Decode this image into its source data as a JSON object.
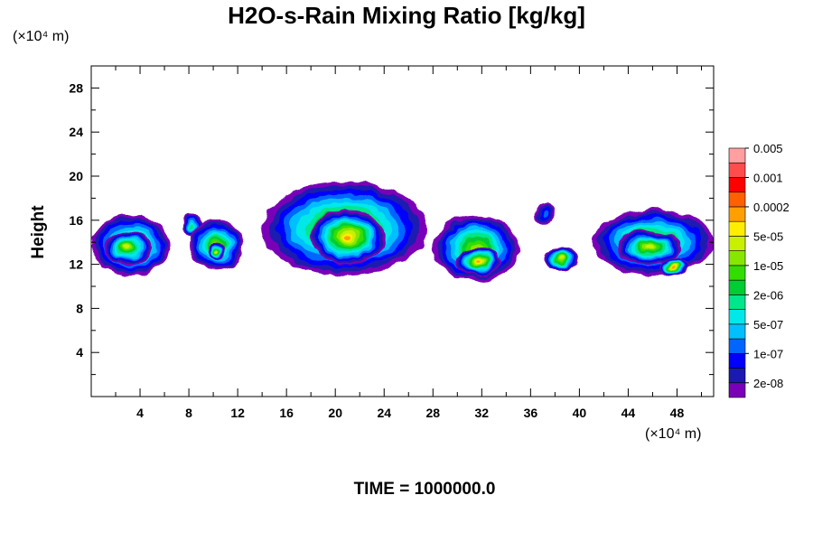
{
  "chart_data": {
    "type": "heatmap",
    "title": "H2O-s-Rain Mixing Ratio [kg/kg]",
    "xlabel": "",
    "ylabel": "Height",
    "x_units": "(×10⁴ m)",
    "y_units": "(×10⁴ m)",
    "footer": "TIME = 1000000.0",
    "xlim": [
      0,
      51
    ],
    "ylim": [
      0,
      30
    ],
    "x_ticks": [
      4,
      8,
      12,
      16,
      20,
      24,
      28,
      32,
      36,
      40,
      44,
      48
    ],
    "y_ticks": [
      4,
      8,
      12,
      16,
      20,
      24,
      28
    ],
    "colorbar": {
      "labels": [
        "2e-08",
        "1e-07",
        "5e-07",
        "2e-06",
        "1e-05",
        "5e-05",
        "0.0002",
        "0.001",
        "0.005"
      ],
      "colors": [
        "#7a00b8",
        "#1a1ab0",
        "#0000ff",
        "#0066ff",
        "#00bfff",
        "#00e8e8",
        "#00e68c",
        "#00cc33",
        "#33dd00",
        "#88e600",
        "#c8f000",
        "#ffee00",
        "#ffa000",
        "#ff6000",
        "#ff0000",
        "#ff4d4d",
        "#ff9f9f"
      ]
    },
    "cells": [
      {
        "x": [
          0,
          6.5
        ],
        "y": [
          11,
          16.5
        ],
        "level": 9
      },
      {
        "x": [
          1,
          5
        ],
        "y": [
          12,
          15
        ],
        "level": 10
      },
      {
        "x": [
          7.5,
          9
        ],
        "y": [
          14.5,
          16.5
        ],
        "level": 6
      },
      {
        "x": [
          8,
          12.5
        ],
        "y": [
          11.5,
          16
        ],
        "level": 9
      },
      {
        "x": [
          9.5,
          11
        ],
        "y": [
          12.5,
          14
        ],
        "level": 10
      },
      {
        "x": [
          14,
          27.5
        ],
        "y": [
          11,
          19.5
        ],
        "level": 10
      },
      {
        "x": [
          18,
          24
        ],
        "y": [
          12,
          17
        ],
        "level": 12
      },
      {
        "x": [
          28,
          35
        ],
        "y": [
          10.5,
          16.5
        ],
        "level": 9
      },
      {
        "x": [
          30,
          33.5
        ],
        "y": [
          11,
          13.5
        ],
        "level": 12
      },
      {
        "x": [
          36.5,
          38
        ],
        "y": [
          15.5,
          17.5
        ],
        "level": 3
      },
      {
        "x": [
          37,
          40
        ],
        "y": [
          11.5,
          13.5
        ],
        "level": 10
      },
      {
        "x": [
          41,
          51
        ],
        "y": [
          11,
          17
        ],
        "level": 9
      },
      {
        "x": [
          43,
          48.5
        ],
        "y": [
          12,
          15
        ],
        "level": 10
      },
      {
        "x": [
          46.5,
          49
        ],
        "y": [
          11,
          12.5
        ],
        "level": 12
      }
    ]
  }
}
